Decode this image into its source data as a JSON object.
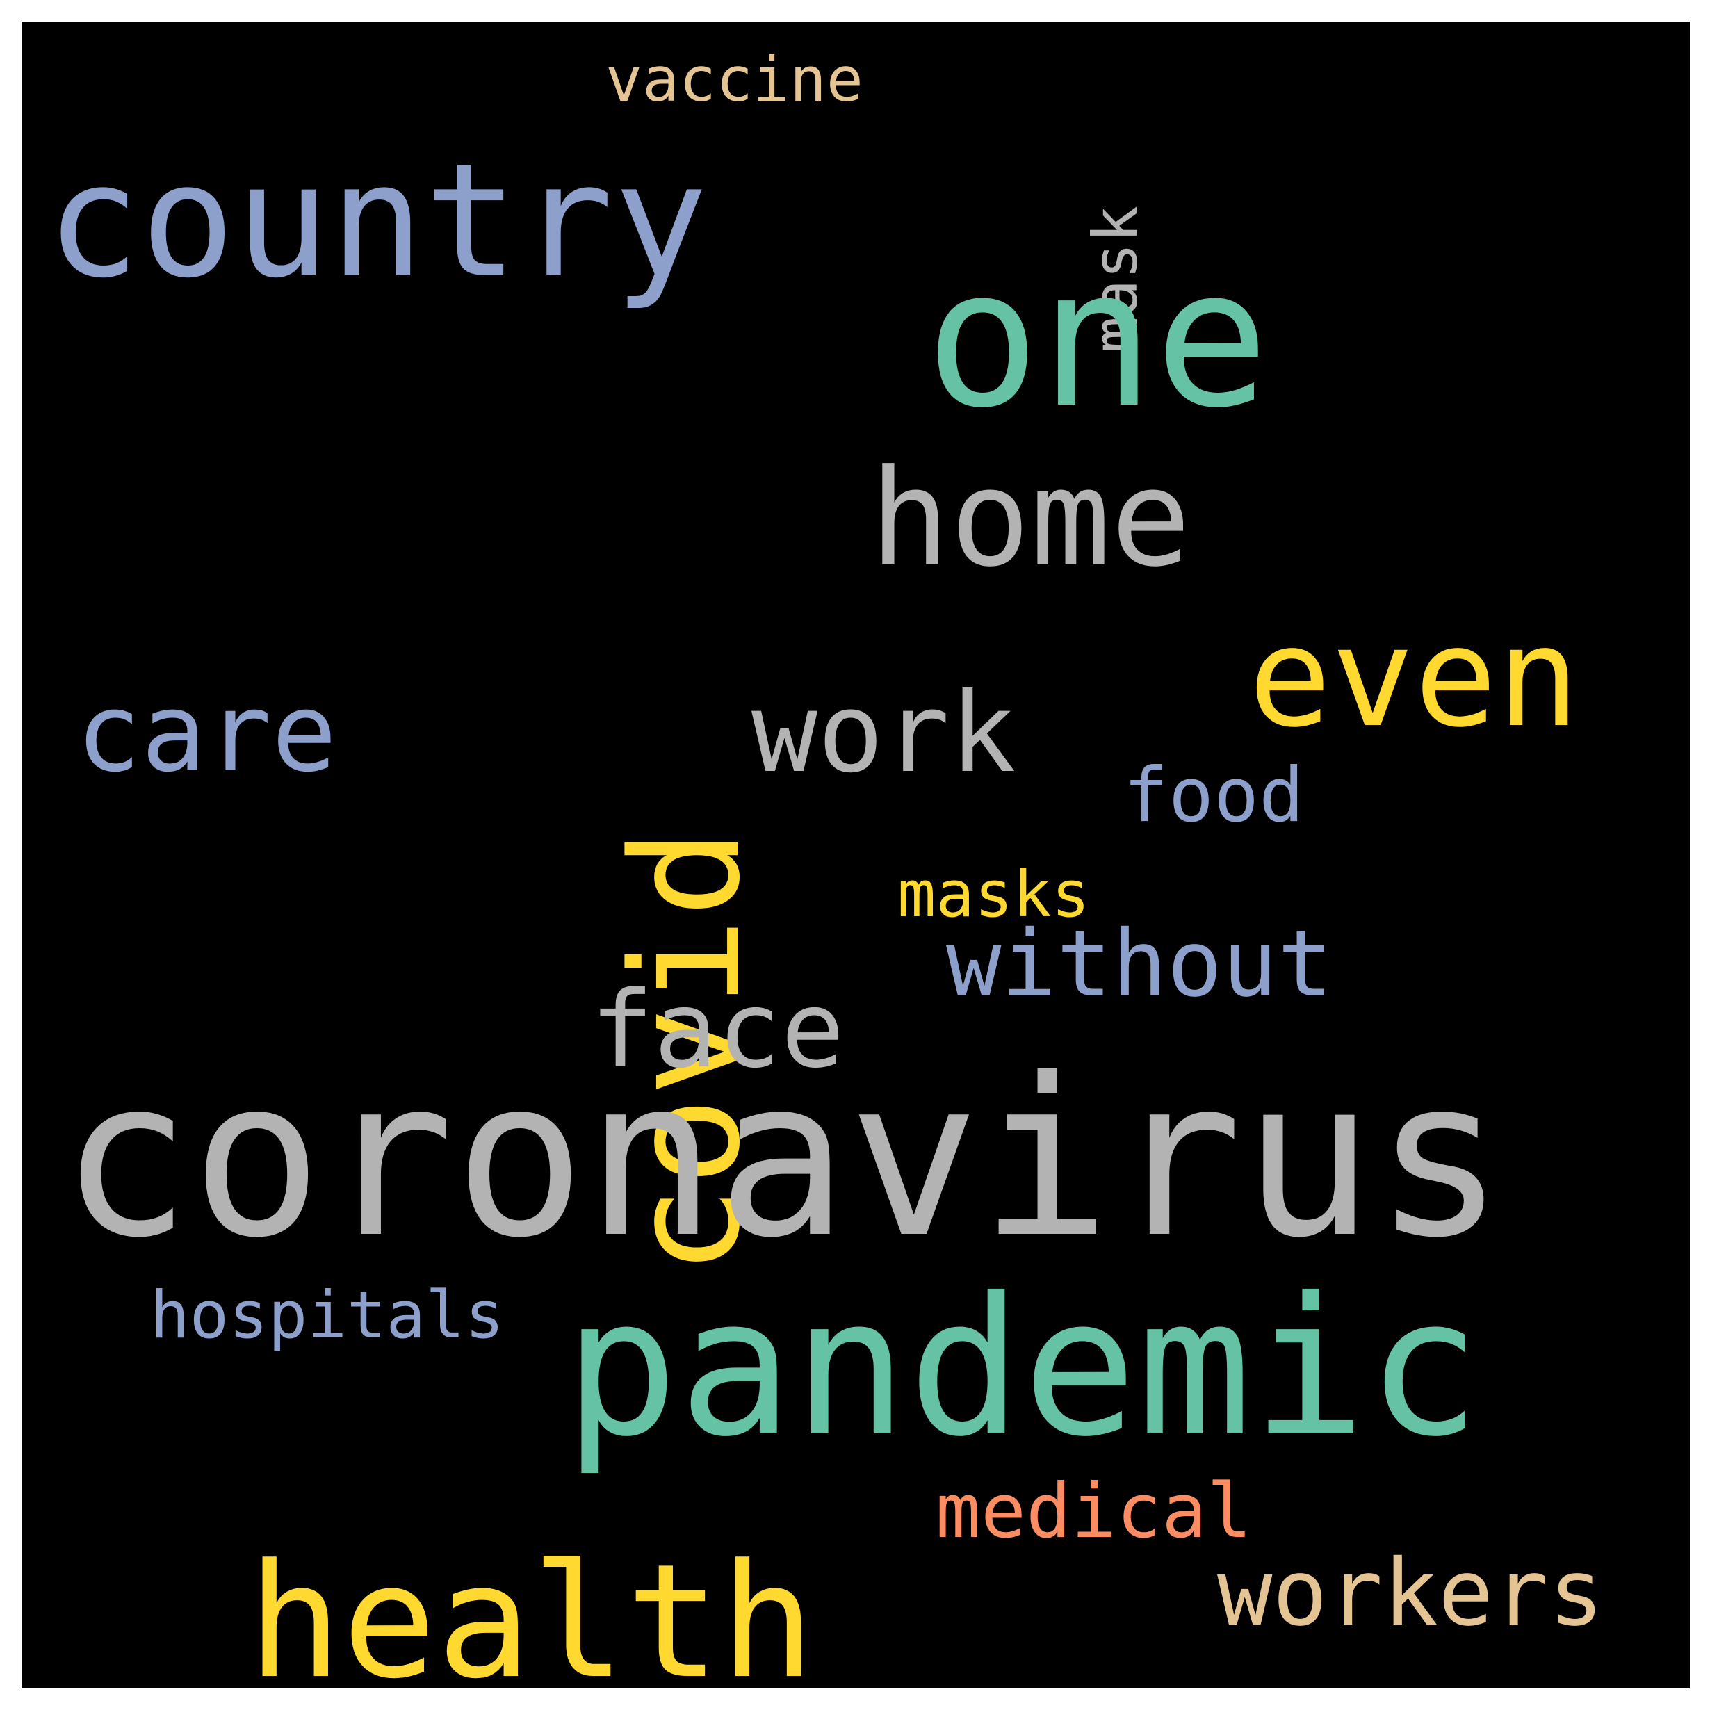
{
  "wordcloud": {
    "background": "#000000",
    "words": {
      "coronavirus": {
        "text": "coronavirus",
        "color": "#b3b3b3"
      },
      "pandemic": {
        "text": "pandemic",
        "color": "#66c2a5"
      },
      "country": {
        "text": "country",
        "color": "#8da0cb"
      },
      "one": {
        "text": "one",
        "color": "#66c2a5"
      },
      "covid": {
        "text": "covid",
        "color": "#ffd92f"
      },
      "home": {
        "text": "home",
        "color": "#b3b3b3"
      },
      "even": {
        "text": "even",
        "color": "#ffd92f"
      },
      "work": {
        "text": "work",
        "color": "#b3b3b3"
      },
      "care": {
        "text": "care",
        "color": "#8da0cb"
      },
      "health": {
        "text": "health",
        "color": "#ffd92f"
      },
      "face": {
        "text": "face",
        "color": "#b3b3b3"
      },
      "without": {
        "text": "without",
        "color": "#8da0cb"
      },
      "workers": {
        "text": "workers",
        "color": "#e5c494"
      },
      "food": {
        "text": "food",
        "color": "#8da0cb"
      },
      "masks": {
        "text": "masks",
        "color": "#ffd92f"
      },
      "medical": {
        "text": "medical",
        "color": "#fc8d62"
      },
      "hospitals": {
        "text": "hospitals",
        "color": "#8da0cb"
      },
      "vaccine": {
        "text": "vaccine",
        "color": "#e5c494"
      },
      "mask": {
        "text": "mask",
        "color": "#b3b3b3"
      }
    }
  }
}
